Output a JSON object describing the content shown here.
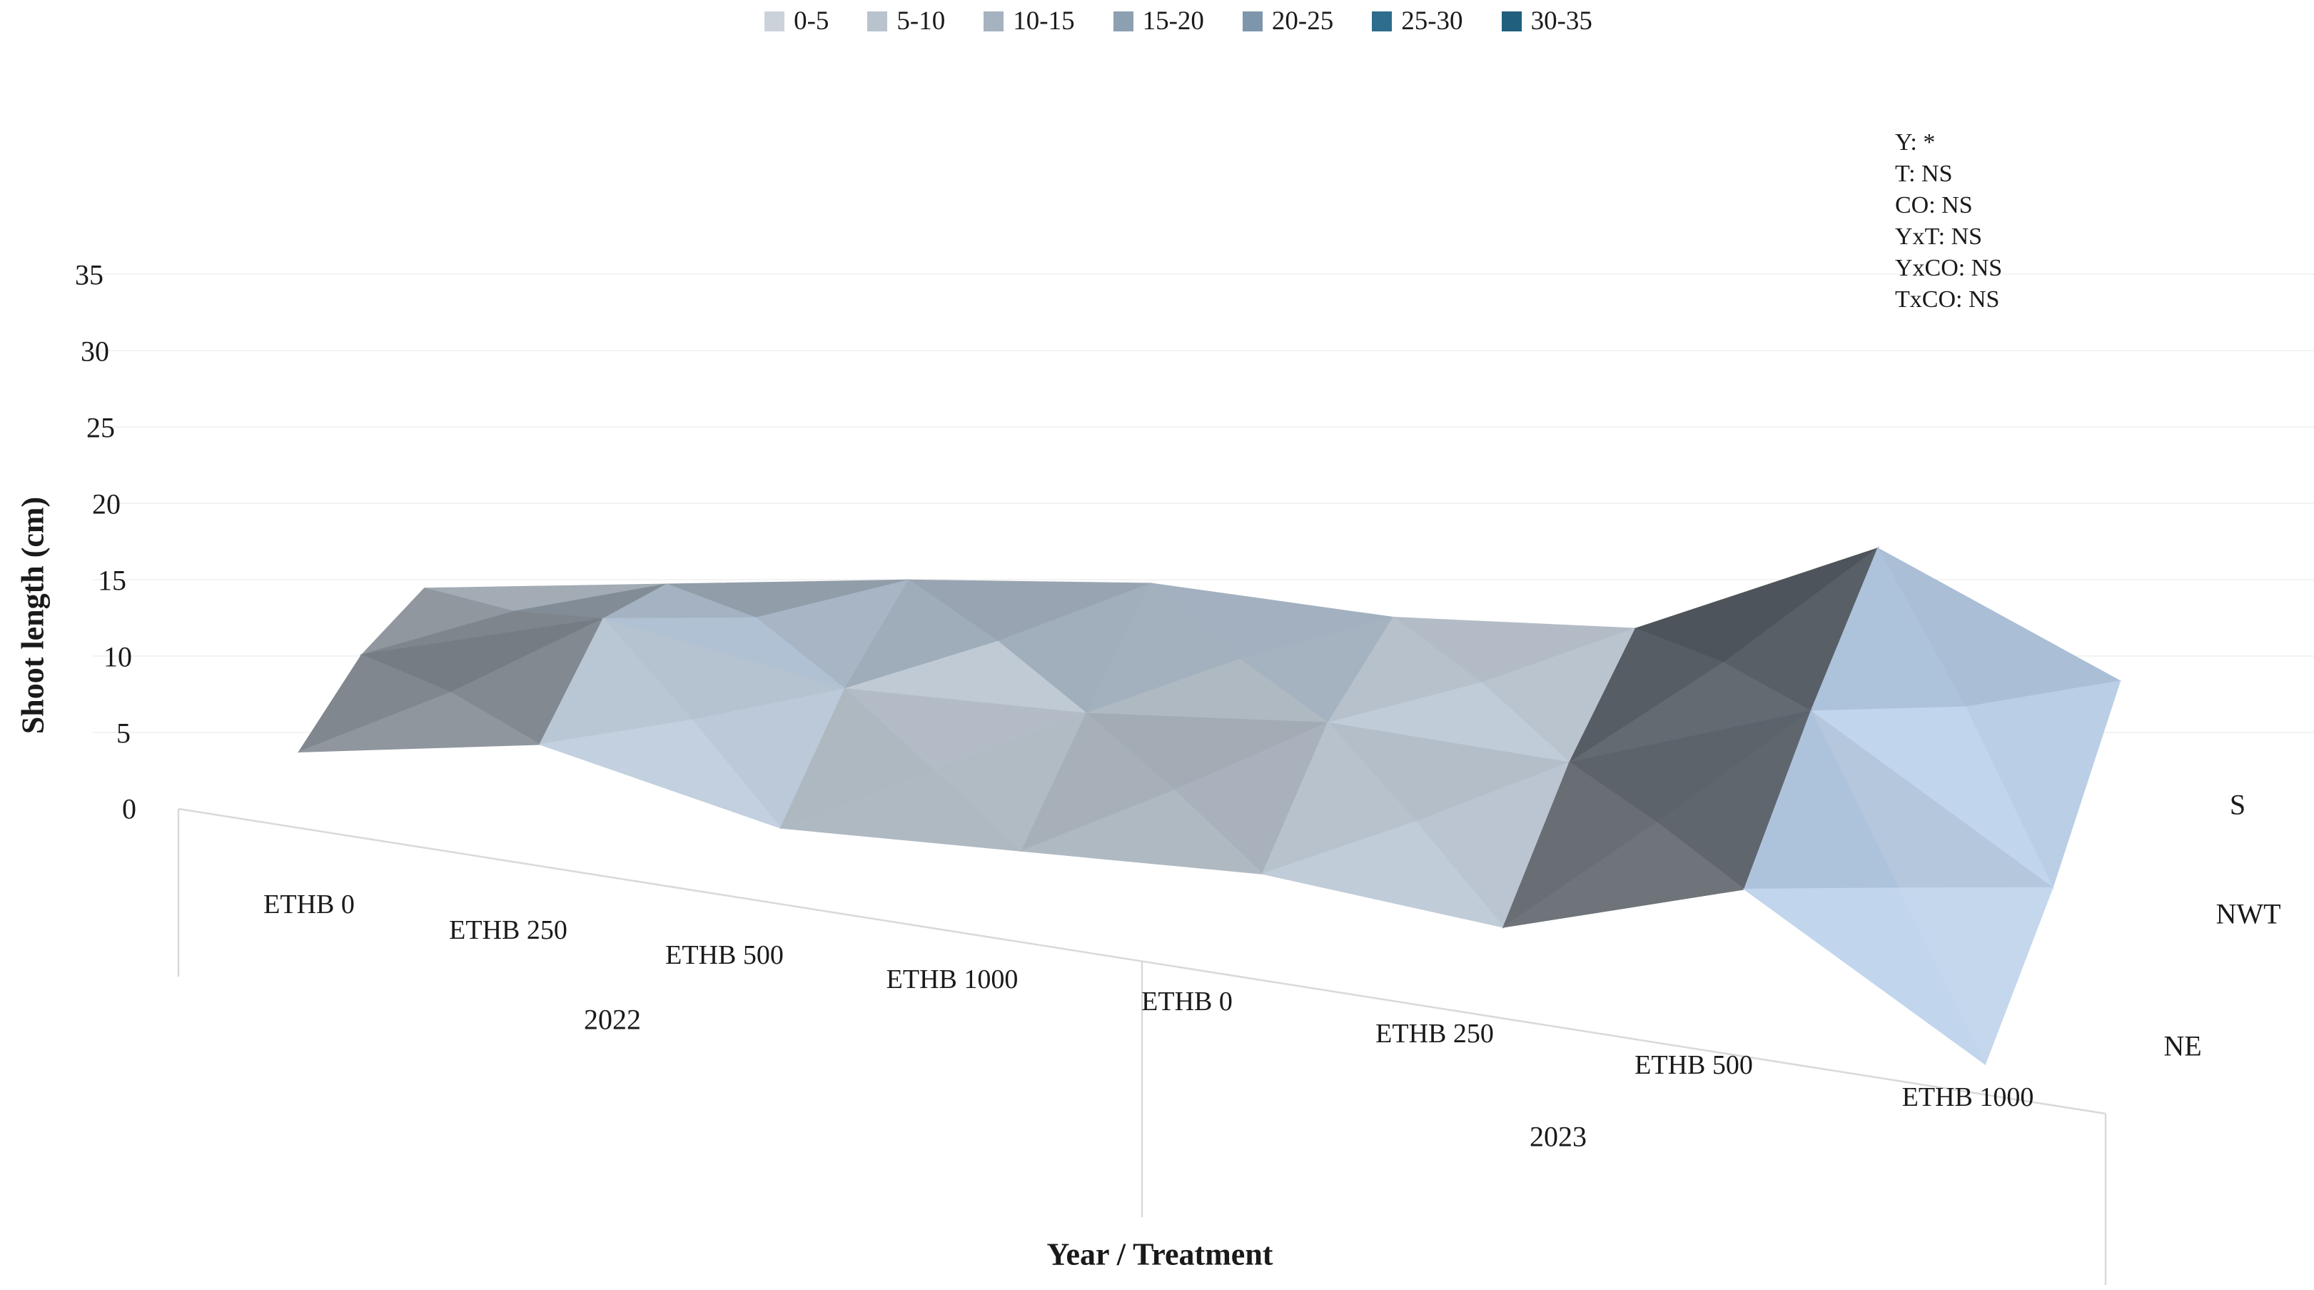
{
  "chart_data": {
    "type": "surface",
    "value_axis_title": "Shoot length (cm)",
    "category_axis_title": "Year / Treatment",
    "ylim": [
      0,
      35
    ],
    "band_size": 5,
    "bands": [
      {
        "label": "0-5",
        "color": "#ccd2d9"
      },
      {
        "label": "5-10",
        "color": "#b9c3cd"
      },
      {
        "label": "10-15",
        "color": "#a5b2c0"
      },
      {
        "label": "15-20",
        "color": "#8da0b1"
      },
      {
        "label": "20-25",
        "color": "#7d96ab"
      },
      {
        "label": "25-30",
        "color": "#2e6d8d"
      },
      {
        "label": "30-35",
        "color": "#205f7e"
      }
    ],
    "category_groups": [
      {
        "year": "2022",
        "treatments": [
          "ETHB 0",
          "ETHB 250",
          "ETHB 500",
          "ETHB 1000"
        ]
      },
      {
        "year": "2023",
        "treatments": [
          "ETHB 0",
          "ETHB 250",
          "ETHB 500",
          "ETHB 1000"
        ]
      }
    ],
    "depth_order_front_to_back": [
      "NE",
      "NWT",
      "S"
    ],
    "series": [
      {
        "name": "S",
        "values": [
          9,
          10,
          11,
          11.5,
          10,
          10,
          16,
          8
        ]
      },
      {
        "name": "NWT",
        "values": [
          8,
          12,
          9,
          9,
          10,
          9,
          14,
          4
        ]
      },
      {
        "name": "NE",
        "values": [
          5,
          8,
          5,
          6,
          7,
          6,
          11,
          2
        ]
      }
    ]
  },
  "value_axis": {
    "title": "Shoot length (cm)",
    "ticks": [
      "35",
      "30",
      "25",
      "20",
      "15",
      "10",
      "5",
      "0"
    ]
  },
  "category_axis": {
    "title": "Year / Treatment"
  },
  "depth_axis": {
    "labels": [
      "S",
      "NWT",
      "NE"
    ]
  },
  "annotation": {
    "lines": [
      "Y: *",
      "T: NS",
      "CO: NS",
      "YxT: NS",
      "YxCO: NS",
      "TxCO: NS"
    ]
  }
}
